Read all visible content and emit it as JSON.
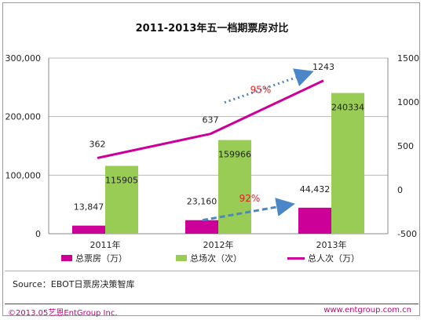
{
  "chart_data": {
    "type": "bar",
    "title": "2011-2013年五一档期票房对比",
    "categories": [
      "2011年",
      "2012年",
      "2013年"
    ],
    "series": [
      {
        "name": "总票房（万）",
        "kind": "bar",
        "axis": "left",
        "color": "#cc0099",
        "values": [
          13847,
          23160,
          44432
        ],
        "labels": [
          "13,847",
          "23,160",
          "44,432"
        ]
      },
      {
        "name": "总场次（次）",
        "kind": "bar",
        "axis": "left",
        "color": "#99cc55",
        "values": [
          115905,
          159966,
          240334
        ],
        "labels": [
          "115905",
          "159966",
          "240334"
        ]
      },
      {
        "name": "总人次（万）",
        "kind": "line",
        "axis": "right",
        "color": "#cc0099",
        "values": [
          362,
          637,
          1243
        ],
        "labels": [
          "362",
          "637",
          "1243"
        ]
      }
    ],
    "y_left": {
      "min": 0,
      "max": 300000,
      "ticks": [
        "0",
        "100,000",
        "200,000",
        "300,000"
      ],
      "tick_values": [
        0,
        100000,
        200000,
        300000
      ]
    },
    "y_right": {
      "min": -500,
      "max": 1500,
      "ticks": [
        "-500",
        "0",
        "500",
        "1000",
        "1500"
      ],
      "tick_values": [
        -500,
        0,
        500,
        1000,
        1500
      ]
    },
    "annotations": [
      {
        "text": "95%",
        "color": "#e02020",
        "arrow_color": "#4a86c8"
      },
      {
        "text": "92%",
        "color": "#e02020",
        "arrow_color": "#4a86c8"
      }
    ],
    "grid": true,
    "legend_position": "bottom"
  },
  "source": "Source：EBOT日票房决策智库",
  "footer": {
    "left": "©2013.05艺恩EntGroup Inc.",
    "right": "www.entgroup.com.cn"
  }
}
